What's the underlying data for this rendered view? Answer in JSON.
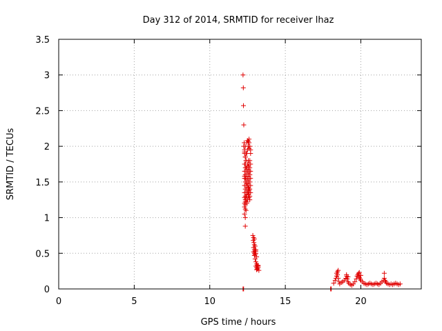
{
  "chart_data": {
    "type": "scatter",
    "title": "Day 312 of 2014, SRMTID for receiver lhaz",
    "xlabel": "GPS time / hours",
    "ylabel": "SRMTID / TECUs",
    "xlim": [
      0,
      24
    ],
    "ylim": [
      0,
      3.5
    ],
    "grid": true,
    "marker": "+",
    "xticks": [
      {
        "v": 0,
        "label": "0"
      },
      {
        "v": 5,
        "label": "5"
      },
      {
        "v": 10,
        "label": "10"
      },
      {
        "v": 15,
        "label": "15"
      },
      {
        "v": 20,
        "label": "20"
      }
    ],
    "yticks": [
      {
        "v": 0,
        "label": "0"
      },
      {
        "v": 0.5,
        "label": "0.5"
      },
      {
        "v": 1,
        "label": "1"
      },
      {
        "v": 1.5,
        "label": "1.5"
      },
      {
        "v": 2,
        "label": "2"
      },
      {
        "v": 2.5,
        "label": "2.5"
      },
      {
        "v": 3,
        "label": "3"
      },
      {
        "v": 3.5,
        "label": "3.5"
      }
    ],
    "color": "#e00000",
    "series": [
      {
        "x": [
          12.2,
          12.22,
          12.23,
          12.25,
          12.28,
          12.3,
          12.25,
          12.3,
          12.35,
          12.4,
          12.3,
          12.35,
          12.4,
          12.45,
          12.3,
          12.35,
          12.4,
          12.45,
          12.5,
          12.55,
          12.3,
          12.35,
          12.4,
          12.45,
          12.5,
          12.55,
          12.6,
          12.65,
          12.3,
          12.35,
          12.4,
          12.45,
          12.5,
          12.55,
          12.6,
          12.65,
          12.7,
          12.3,
          12.35,
          12.4,
          12.45,
          12.5,
          12.55,
          12.6,
          12.65,
          12.7,
          12.3,
          12.35,
          12.4,
          12.5,
          12.55,
          12.6,
          12.65,
          12.7,
          12.3,
          12.35,
          12.4,
          12.45,
          12.5,
          12.55,
          12.6,
          12.65,
          12.7,
          12.3,
          12.35,
          12.45,
          12.5,
          12.6,
          12.65,
          12.7,
          12.35,
          12.4,
          12.5,
          12.55,
          12.6,
          12.7,
          12.3,
          12.35,
          12.45,
          12.5,
          12.6,
          12.65,
          12.7,
          12.35,
          12.4,
          12.55,
          12.6,
          12.65,
          12.3,
          12.35,
          12.45,
          12.55,
          12.6,
          12.35,
          12.45,
          12.55,
          12.6,
          12.65,
          12.55,
          12.6,
          12.35,
          12.4,
          12.3,
          12.35,
          12.85,
          12.9,
          12.95,
          12.88,
          12.92,
          12.95,
          13.0,
          12.9,
          12.95,
          13.0,
          13.05,
          12.9,
          12.95,
          13.0,
          13.05,
          12.95,
          13.0,
          13.05,
          13.1,
          13.0,
          13.05,
          13.1,
          13.15,
          13.05,
          13.1,
          13.15,
          13.2,
          13.1,
          13.15,
          13.2,
          13.15,
          13.2,
          13.2,
          13.25
        ],
        "y": [
          3.0,
          2.82,
          2.57,
          2.3,
          2.05,
          1.95,
          2.0,
          1.9,
          1.85,
          1.8,
          1.75,
          1.7,
          1.8,
          1.9,
          1.65,
          1.6,
          1.65,
          1.7,
          1.75,
          1.8,
          1.55,
          1.5,
          1.55,
          1.6,
          1.65,
          1.7,
          1.75,
          1.8,
          1.45,
          1.4,
          1.45,
          1.5,
          1.55,
          1.6,
          1.65,
          1.7,
          1.75,
          1.35,
          1.3,
          1.35,
          1.4,
          1.45,
          1.5,
          1.55,
          1.6,
          1.65,
          1.28,
          1.25,
          1.3,
          1.35,
          1.4,
          1.45,
          1.5,
          1.55,
          1.2,
          1.22,
          1.25,
          1.3,
          1.35,
          1.3,
          1.35,
          1.4,
          1.45,
          1.15,
          1.18,
          1.2,
          1.25,
          1.28,
          1.3,
          1.35,
          1.85,
          1.9,
          1.95,
          2.0,
          2.05,
          1.95,
          1.92,
          2.0,
          2.05,
          2.08,
          2.1,
          2.0,
          1.9,
          1.75,
          1.7,
          1.72,
          1.65,
          1.6,
          1.58,
          1.55,
          1.48,
          1.42,
          1.38,
          1.12,
          1.22,
          1.33,
          1.4,
          1.25,
          2.07,
          1.97,
          0.88,
          1.1,
          1.05,
          1.0,
          0.75,
          0.72,
          0.7,
          0.68,
          0.65,
          0.62,
          0.6,
          0.58,
          0.55,
          0.53,
          0.5,
          0.52,
          0.5,
          0.48,
          0.55,
          0.47,
          0.5,
          0.53,
          0.45,
          0.42,
          0.38,
          0.35,
          0.33,
          0.32,
          0.3,
          0.28,
          0.3,
          0.27,
          0.3,
          0.33,
          0.28,
          0.32,
          0.3,
          0.26
        ]
      },
      {
        "x": [
          12.2,
          12.22,
          12.24,
          18.0,
          18.02,
          18.04,
          18.2,
          18.3,
          18.35,
          18.4,
          18.45,
          18.5,
          18.55,
          18.6,
          18.7,
          18.8,
          18.9,
          19.0,
          19.05,
          19.1,
          19.15,
          19.2,
          19.3,
          19.4,
          19.5,
          19.6,
          19.7,
          19.75,
          19.8,
          19.85,
          19.9,
          19.95,
          20.0,
          20.1,
          20.2,
          20.3,
          20.4,
          20.5,
          20.6,
          20.7,
          20.8,
          20.9,
          21.0,
          21.1,
          21.2,
          21.3,
          21.4,
          21.5,
          21.55,
          21.6,
          21.65,
          21.7,
          21.8,
          21.9,
          22.0,
          22.1,
          22.2,
          22.3,
          22.4,
          22.5,
          22.6,
          18.4,
          18.5,
          18.45,
          19.05,
          19.15,
          19.85,
          19.9,
          20.0,
          21.55
        ],
        "y": [
          0.0,
          0.0,
          0.0,
          0.0,
          0.0,
          0.0,
          0.08,
          0.12,
          0.15,
          0.18,
          0.2,
          0.15,
          0.1,
          0.07,
          0.09,
          0.1,
          0.12,
          0.15,
          0.18,
          0.14,
          0.1,
          0.08,
          0.06,
          0.05,
          0.07,
          0.1,
          0.14,
          0.18,
          0.2,
          0.18,
          0.16,
          0.14,
          0.12,
          0.1,
          0.08,
          0.07,
          0.06,
          0.07,
          0.08,
          0.07,
          0.06,
          0.07,
          0.08,
          0.07,
          0.06,
          0.08,
          0.1,
          0.12,
          0.15,
          0.12,
          0.1,
          0.08,
          0.07,
          0.06,
          0.07,
          0.06,
          0.07,
          0.08,
          0.07,
          0.06,
          0.07,
          0.22,
          0.26,
          0.24,
          0.2,
          0.17,
          0.22,
          0.23,
          0.19,
          0.22
        ]
      }
    ]
  }
}
